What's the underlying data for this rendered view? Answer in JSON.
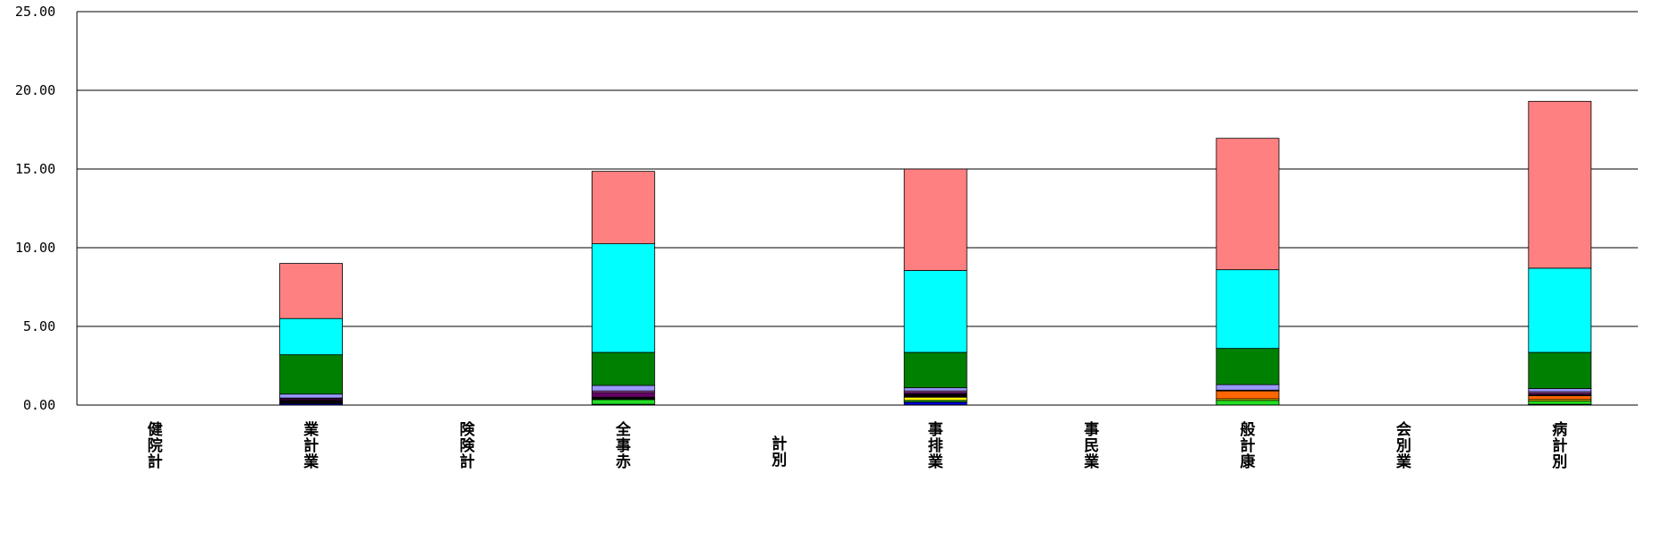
{
  "chart_data": {
    "type": "bar",
    "stacked": true,
    "title": "",
    "xlabel": "",
    "ylabel": "",
    "ylim": [
      0,
      25
    ],
    "yticks": [
      "0.00",
      "5.00",
      "10.00",
      "15.00",
      "20.00",
      "25.00"
    ],
    "grid": true,
    "legend": "none",
    "categories": [
      [
        "健",
        "院",
        "計"
      ],
      [
        "業",
        "計",
        "業"
      ],
      [
        "険",
        "険",
        "計"
      ],
      [
        "全",
        "事",
        "赤"
      ],
      [
        "計",
        "別"
      ],
      [
        "事",
        "排",
        "業"
      ],
      [
        "事",
        "民",
        "業"
      ],
      [
        "般",
        "計",
        "康"
      ],
      [
        "会",
        "別",
        "業"
      ],
      [
        "病",
        "計",
        "別"
      ]
    ],
    "series": [
      {
        "color": "#0000cc",
        "values": [
          0,
          0.1,
          0,
          0.05,
          0,
          0.2,
          0,
          0,
          0,
          0.05
        ]
      },
      {
        "color": "#22dd22",
        "values": [
          0,
          0,
          0,
          0.3,
          0,
          0.1,
          0,
          0.3,
          0,
          0.2
        ]
      },
      {
        "color": "#ffff00",
        "values": [
          0,
          0.05,
          0,
          0.05,
          0,
          0.2,
          0,
          0.1,
          0,
          0.1
        ]
      },
      {
        "color": "#ff6600",
        "values": [
          0,
          0,
          0,
          0,
          0,
          0.05,
          0,
          0.5,
          0,
          0.25
        ]
      },
      {
        "color": "#000000",
        "values": [
          0,
          0.15,
          0,
          0.1,
          0,
          0.15,
          0,
          0,
          0,
          0.05
        ]
      },
      {
        "color": "#660066",
        "values": [
          0,
          0.1,
          0,
          0.3,
          0,
          0.1,
          0,
          0,
          0,
          0.1
        ]
      },
      {
        "color": "#cc66cc",
        "values": [
          0,
          0.05,
          0,
          0.1,
          0,
          0.1,
          0,
          0.05,
          0,
          0.1
        ]
      },
      {
        "color": "#9999ff",
        "values": [
          0,
          0.25,
          0,
          0.35,
          0,
          0.2,
          0,
          0.35,
          0,
          0.2
        ]
      },
      {
        "color": "#008000",
        "values": [
          0,
          2.5,
          0,
          2.1,
          0,
          2.25,
          0,
          2.3,
          0,
          2.3
        ]
      },
      {
        "color": "#00ffff",
        "values": [
          0,
          2.3,
          0,
          6.9,
          0,
          5.2,
          0,
          5.0,
          0,
          5.35
        ]
      },
      {
        "color": "#ff8080",
        "values": [
          0,
          3.5,
          0,
          4.6,
          0,
          6.45,
          0,
          8.35,
          0,
          10.6
        ]
      }
    ]
  }
}
